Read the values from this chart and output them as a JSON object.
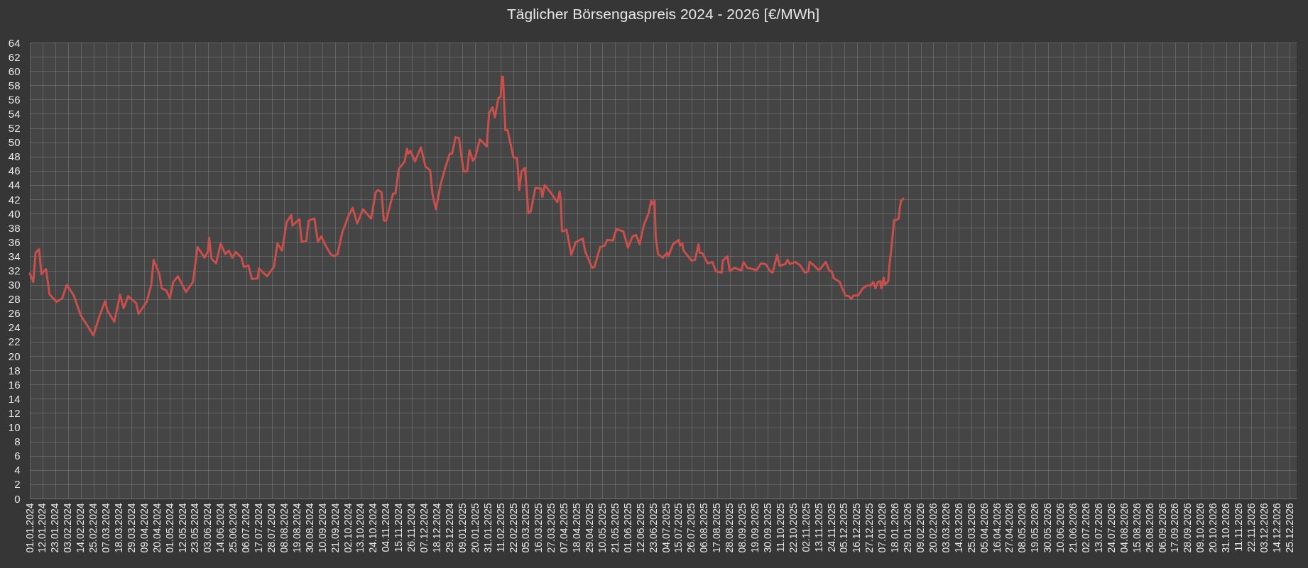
{
  "chart_data": {
    "type": "line",
    "title": "Täglicher Börsengaspreis 2024 - 2026 [€/MWh]",
    "x": [
      "2024-01-01",
      "2024-01-04",
      "2024-01-06",
      "2024-01-09",
      "2024-01-11",
      "2024-01-15",
      "2024-01-18",
      "2024-01-24",
      "2024-01-29",
      "2024-02-02",
      "2024-02-08",
      "2024-02-14",
      "2024-02-20",
      "2024-02-25",
      "2024-03-01",
      "2024-03-06",
      "2024-03-08",
      "2024-03-14",
      "2024-03-19",
      "2024-03-22",
      "2024-03-26",
      "2024-04-02",
      "2024-04-04",
      "2024-04-11",
      "2024-04-15",
      "2024-04-17",
      "2024-04-22",
      "2024-04-24",
      "2024-04-28",
      "2024-05-01",
      "2024-05-04",
      "2024-05-08",
      "2024-05-15",
      "2024-05-21",
      "2024-05-25",
      "2024-05-31",
      "2024-06-03",
      "2024-06-04",
      "2024-06-06",
      "2024-06-10",
      "2024-06-14",
      "2024-06-18",
      "2024-06-21",
      "2024-06-24",
      "2024-06-27",
      "2024-07-02",
      "2024-07-04",
      "2024-07-08",
      "2024-07-11",
      "2024-07-16",
      "2024-07-17",
      "2024-07-24",
      "2024-07-30",
      "2024-08-02",
      "2024-08-06",
      "2024-08-10",
      "2024-08-14",
      "2024-08-15",
      "2024-08-21",
      "2024-08-23",
      "2024-08-27",
      "2024-08-29",
      "2024-09-03",
      "2024-09-06",
      "2024-09-09",
      "2024-09-12",
      "2024-09-17",
      "2024-09-20",
      "2024-09-23",
      "2024-09-27",
      "2024-10-02",
      "2024-10-06",
      "2024-10-10",
      "2024-10-15",
      "2024-10-22",
      "2024-10-26",
      "2024-10-28",
      "2024-10-31",
      "2024-11-02",
      "2024-11-04",
      "2024-11-10",
      "2024-11-12",
      "2024-11-15",
      "2024-11-20",
      "2024-11-22",
      "2024-11-23",
      "2024-11-25",
      "2024-11-29",
      "2024-12-04",
      "2024-12-08",
      "2024-12-12",
      "2024-12-14",
      "2024-12-17",
      "2024-12-21",
      "2024-12-25",
      "2024-12-29",
      "2024-12-31",
      "2025-01-03",
      "2025-01-06",
      "2025-01-08",
      "2025-01-10",
      "2025-01-13",
      "2025-01-15",
      "2025-01-18",
      "2025-01-20",
      "2025-01-24",
      "2025-01-26",
      "2025-01-30",
      "2025-02-01",
      "2025-02-04",
      "2025-02-06",
      "2025-02-09",
      "2025-02-11",
      "2025-02-12",
      "2025-02-13",
      "2025-02-15",
      "2025-02-17",
      "2025-02-22",
      "2025-02-25",
      "2025-02-26",
      "2025-02-27",
      "2025-03-01",
      "2025-03-04",
      "2025-03-07",
      "2025-03-09",
      "2025-03-13",
      "2025-03-18",
      "2025-03-19",
      "2025-03-21",
      "2025-03-26",
      "2025-04-01",
      "2025-04-03",
      "2025-04-04",
      "2025-04-05",
      "2025-04-09",
      "2025-04-13",
      "2025-04-17",
      "2025-04-23",
      "2025-04-25",
      "2025-05-01",
      "2025-05-03",
      "2025-05-08",
      "2025-05-12",
      "2025-05-14",
      "2025-05-19",
      "2025-05-22",
      "2025-05-28",
      "2025-06-01",
      "2025-06-05",
      "2025-06-08",
      "2025-06-11",
      "2025-06-15",
      "2025-06-19",
      "2025-06-21",
      "2025-06-22",
      "2025-06-24",
      "2025-06-25",
      "2025-06-27",
      "2025-07-01",
      "2025-07-05",
      "2025-07-06",
      "2025-07-10",
      "2025-07-15",
      "2025-07-16",
      "2025-07-18",
      "2025-07-19",
      "2025-07-22",
      "2025-07-26",
      "2025-07-29",
      "2025-08-01",
      "2025-08-02",
      "2025-08-04",
      "2025-08-09",
      "2025-08-13",
      "2025-08-16",
      "2025-08-21",
      "2025-08-22",
      "2025-08-26",
      "2025-08-28",
      "2025-09-01",
      "2025-09-07",
      "2025-09-09",
      "2025-09-12",
      "2025-09-17",
      "2025-09-20",
      "2025-09-24",
      "2025-09-28",
      "2025-10-02",
      "2025-10-04",
      "2025-10-08",
      "2025-10-10",
      "2025-10-15",
      "2025-10-17",
      "2025-10-19",
      "2025-10-24",
      "2025-10-28",
      "2025-11-01",
      "2025-11-04",
      "2025-11-05",
      "2025-11-09",
      "2025-11-13",
      "2025-11-19",
      "2025-11-22",
      "2025-11-24",
      "2025-11-26",
      "2025-12-01",
      "2025-12-03",
      "2025-12-06",
      "2025-12-09",
      "2025-12-11",
      "2025-12-13",
      "2025-12-17",
      "2025-12-21",
      "2025-12-25",
      "2025-12-28",
      "2025-12-30",
      "2026-01-01",
      "2026-01-03",
      "2026-01-05",
      "2026-01-06",
      "2026-01-08",
      "2026-01-09",
      "2026-01-12",
      "2026-01-13",
      "2026-01-15",
      "2026-01-17",
      "2026-01-19",
      "2026-01-21",
      "2026-01-22",
      "2026-01-23",
      "2026-01-25"
    ],
    "series": [
      {
        "color": "#c94f4c",
        "values": [
          31.6,
          30.4,
          34.5,
          35.0,
          31.5,
          32.2,
          28.7,
          27.6,
          28.1,
          30.0,
          28.5,
          25.7,
          24.2,
          22.9,
          25.5,
          27.7,
          26.4,
          24.8,
          28.6,
          26.7,
          28.4,
          27.4,
          25.9,
          27.6,
          30.0,
          33.5,
          31.5,
          29.5,
          29.2,
          28.1,
          30.4,
          31.2,
          29.0,
          30.4,
          35.3,
          33.8,
          34.7,
          36.6,
          33.7,
          33.0,
          35.8,
          34.3,
          34.8,
          33.8,
          34.6,
          33.8,
          32.5,
          32.7,
          30.8,
          30.9,
          32.3,
          31.2,
          32.5,
          35.8,
          34.8,
          38.8,
          39.8,
          38.3,
          39.2,
          36.0,
          36.2,
          39.0,
          39.3,
          36.0,
          36.8,
          35.7,
          34.3,
          34.0,
          34.3,
          37.3,
          39.5,
          40.8,
          38.6,
          40.6,
          39.3,
          43.0,
          43.3,
          43.0,
          39.0,
          39.0,
          42.8,
          42.8,
          46.3,
          47.3,
          49.1,
          48.4,
          48.8,
          47.3,
          49.3,
          46.6,
          46.1,
          42.8,
          40.6,
          44.0,
          46.4,
          48.4,
          48.4,
          50.7,
          50.6,
          48.1,
          45.9,
          45.9,
          48.9,
          47.4,
          47.9,
          50.4,
          50.1,
          49.4,
          54.1,
          54.9,
          53.5,
          56.2,
          56.4,
          59.2,
          59.2,
          51.7,
          51.7,
          47.9,
          47.8,
          46.1,
          43.3,
          45.9,
          46.4,
          40.0,
          40.3,
          43.6,
          43.5,
          42.3,
          44.0,
          43.0,
          41.6,
          43.1,
          41.6,
          37.5,
          37.7,
          34.2,
          36.0,
          36.5,
          34.7,
          32.4,
          32.5,
          35.3,
          35.5,
          36.3,
          36.2,
          37.8,
          37.5,
          35.2,
          36.8,
          37.0,
          35.7,
          38.5,
          40.1,
          41.8,
          41.3,
          41.8,
          36.7,
          34.3,
          33.8,
          34.5,
          34.0,
          35.7,
          36.3,
          35.5,
          35.8,
          34.8,
          34.2,
          33.4,
          33.5,
          35.7,
          34.5,
          34.5,
          33.0,
          33.2,
          31.9,
          31.7,
          33.4,
          34.0,
          31.9,
          32.4,
          32.0,
          33.2,
          32.4,
          32.2,
          32.0,
          33.0,
          32.9,
          31.9,
          31.7,
          34.2,
          32.7,
          32.9,
          33.5,
          32.9,
          33.2,
          32.7,
          31.7,
          31.9,
          33.2,
          32.7,
          32.0,
          33.2,
          32.0,
          31.9,
          30.9,
          30.4,
          29.6,
          28.5,
          28.4,
          28.0,
          28.5,
          28.5,
          29.5,
          29.9,
          29.9,
          30.4,
          29.5,
          30.4,
          30.5,
          29.5,
          31.0,
          30.0,
          30.5,
          32.7,
          35.5,
          39.1,
          39.1,
          39.3,
          40.8,
          41.8,
          42.1
        ]
      }
    ],
    "xlim": [
      "2024-01-01",
      "2026-12-31"
    ],
    "xticks": [
      {
        "value": "2024-01-01",
        "label": "01.01.2024"
      },
      {
        "value": "2024-01-12",
        "label": "12.01.2024"
      },
      {
        "value": "2024-01-23",
        "label": "23.01.2024"
      },
      {
        "value": "2024-02-03",
        "label": "03.02.2024"
      },
      {
        "value": "2024-02-14",
        "label": "14.02.2024"
      },
      {
        "value": "2024-02-25",
        "label": "25.02.2024"
      },
      {
        "value": "2024-03-07",
        "label": "07.03.2024"
      },
      {
        "value": "2024-03-18",
        "label": "18.03.2024"
      },
      {
        "value": "2024-03-29",
        "label": "29.03.2024"
      },
      {
        "value": "2024-04-09",
        "label": "09.04.2024"
      },
      {
        "value": "2024-04-20",
        "label": "20.04.2024"
      },
      {
        "value": "2024-05-01",
        "label": "01.05.2024"
      },
      {
        "value": "2024-05-12",
        "label": "12.05.2024"
      },
      {
        "value": "2024-05-23",
        "label": "23.05.2024"
      },
      {
        "value": "2024-06-03",
        "label": "03.06.2024"
      },
      {
        "value": "2024-06-14",
        "label": "14.06.2024"
      },
      {
        "value": "2024-06-25",
        "label": "25.06.2024"
      },
      {
        "value": "2024-07-06",
        "label": "06.07.2024"
      },
      {
        "value": "2024-07-17",
        "label": "17.07.2024"
      },
      {
        "value": "2024-07-28",
        "label": "28.07.2024"
      },
      {
        "value": "2024-08-08",
        "label": "08.08.2024"
      },
      {
        "value": "2024-08-19",
        "label": "19.08.2024"
      },
      {
        "value": "2024-08-30",
        "label": "30.08.2024"
      },
      {
        "value": "2024-09-10",
        "label": "10.09.2024"
      },
      {
        "value": "2024-09-21",
        "label": "21.09.2024"
      },
      {
        "value": "2024-10-02",
        "label": "02.10.2024"
      },
      {
        "value": "2024-10-13",
        "label": "13.10.2024"
      },
      {
        "value": "2024-10-24",
        "label": "24.10.2024"
      },
      {
        "value": "2024-11-04",
        "label": "04.11.2024"
      },
      {
        "value": "2024-11-15",
        "label": "15.11.2024"
      },
      {
        "value": "2024-11-26",
        "label": "26.11.2024"
      },
      {
        "value": "2024-12-07",
        "label": "07.12.2024"
      },
      {
        "value": "2024-12-18",
        "label": "18.12.2024"
      },
      {
        "value": "2024-12-29",
        "label": "29.12.2024"
      },
      {
        "value": "2025-01-09",
        "label": "09.01.2025"
      },
      {
        "value": "2025-01-20",
        "label": "20.01.2025"
      },
      {
        "value": "2025-01-31",
        "label": "31.01.2025"
      },
      {
        "value": "2025-02-11",
        "label": "11.02.2025"
      },
      {
        "value": "2025-02-22",
        "label": "22.02.2025"
      },
      {
        "value": "2025-03-05",
        "label": "05.03.2025"
      },
      {
        "value": "2025-03-16",
        "label": "16.03.2025"
      },
      {
        "value": "2025-03-27",
        "label": "27.03.2025"
      },
      {
        "value": "2025-04-07",
        "label": "07.04.2025"
      },
      {
        "value": "2025-04-18",
        "label": "18.04.2025"
      },
      {
        "value": "2025-04-29",
        "label": "29.04.2025"
      },
      {
        "value": "2025-05-10",
        "label": "10.05.2025"
      },
      {
        "value": "2025-05-21",
        "label": "21.05.2025"
      },
      {
        "value": "2025-06-01",
        "label": "01.06.2025"
      },
      {
        "value": "2025-06-12",
        "label": "12.06.2025"
      },
      {
        "value": "2025-06-23",
        "label": "23.06.2025"
      },
      {
        "value": "2025-07-04",
        "label": "04.07.2025"
      },
      {
        "value": "2025-07-15",
        "label": "15.07.2025"
      },
      {
        "value": "2025-07-26",
        "label": "26.07.2025"
      },
      {
        "value": "2025-08-06",
        "label": "06.08.2025"
      },
      {
        "value": "2025-08-17",
        "label": "17.08.2025"
      },
      {
        "value": "2025-08-28",
        "label": "28.08.2025"
      },
      {
        "value": "2025-09-08",
        "label": "08.09.2025"
      },
      {
        "value": "2025-09-19",
        "label": "19.09.2025"
      },
      {
        "value": "2025-09-30",
        "label": "30.09.2025"
      },
      {
        "value": "2025-10-11",
        "label": "11.10.2025"
      },
      {
        "value": "2025-10-22",
        "label": "22.10.2025"
      },
      {
        "value": "2025-11-02",
        "label": "02.11.2025"
      },
      {
        "value": "2025-11-13",
        "label": "13.11.2025"
      },
      {
        "value": "2025-11-24",
        "label": "24.11.2025"
      },
      {
        "value": "2025-12-05",
        "label": "05.12.2025"
      },
      {
        "value": "2025-12-16",
        "label": "16.12.2025"
      },
      {
        "value": "2025-12-27",
        "label": "27.12.2025"
      },
      {
        "value": "2026-01-07",
        "label": "07.01.2026"
      },
      {
        "value": "2026-01-18",
        "label": "18.01.2026"
      },
      {
        "value": "2026-01-29",
        "label": "29.01.2026"
      },
      {
        "value": "2026-02-09",
        "label": "09.02.2026"
      },
      {
        "value": "2026-02-20",
        "label": "20.02.2026"
      },
      {
        "value": "2026-03-03",
        "label": "03.03.2026"
      },
      {
        "value": "2026-03-14",
        "label": "14.03.2026"
      },
      {
        "value": "2026-03-25",
        "label": "25.03.2026"
      },
      {
        "value": "2026-04-05",
        "label": "05.04.2026"
      },
      {
        "value": "2026-04-16",
        "label": "16.04.2026"
      },
      {
        "value": "2026-04-27",
        "label": "27.04.2026"
      },
      {
        "value": "2026-05-08",
        "label": "08.05.2026"
      },
      {
        "value": "2026-05-19",
        "label": "19.05.2026"
      },
      {
        "value": "2026-05-30",
        "label": "30.05.2026"
      },
      {
        "value": "2026-06-10",
        "label": "10.06.2026"
      },
      {
        "value": "2026-06-21",
        "label": "21.06.2026"
      },
      {
        "value": "2026-07-02",
        "label": "02.07.2026"
      },
      {
        "value": "2026-07-13",
        "label": "13.07.2026"
      },
      {
        "value": "2026-07-24",
        "label": "24.07.2026"
      },
      {
        "value": "2026-08-04",
        "label": "04.08.2026"
      },
      {
        "value": "2026-08-15",
        "label": "15.08.2026"
      },
      {
        "value": "2026-08-26",
        "label": "26.08.2026"
      },
      {
        "value": "2026-09-06",
        "label": "06.09.2026"
      },
      {
        "value": "2026-09-17",
        "label": "17.09.2026"
      },
      {
        "value": "2026-09-28",
        "label": "28.09.2026"
      },
      {
        "value": "2026-10-09",
        "label": "09.10.2026"
      },
      {
        "value": "2026-10-20",
        "label": "20.10.2026"
      },
      {
        "value": "2026-10-31",
        "label": "31.10.2026"
      },
      {
        "value": "2026-11-11",
        "label": "11.11.2026"
      },
      {
        "value": "2026-11-22",
        "label": "22.11.2026"
      },
      {
        "value": "2026-12-03",
        "label": "03.12.2026"
      },
      {
        "value": "2026-12-14",
        "label": "14.12.2026"
      },
      {
        "value": "2026-12-25",
        "label": "25.12.2026"
      }
    ],
    "ylim": [
      0,
      64
    ],
    "yticks": [
      0,
      2,
      4,
      6,
      8,
      10,
      12,
      14,
      16,
      18,
      20,
      22,
      24,
      26,
      28,
      30,
      32,
      34,
      36,
      38,
      40,
      42,
      44,
      46,
      48,
      50,
      52,
      54,
      56,
      58,
      60,
      62,
      64
    ],
    "grid": true
  }
}
